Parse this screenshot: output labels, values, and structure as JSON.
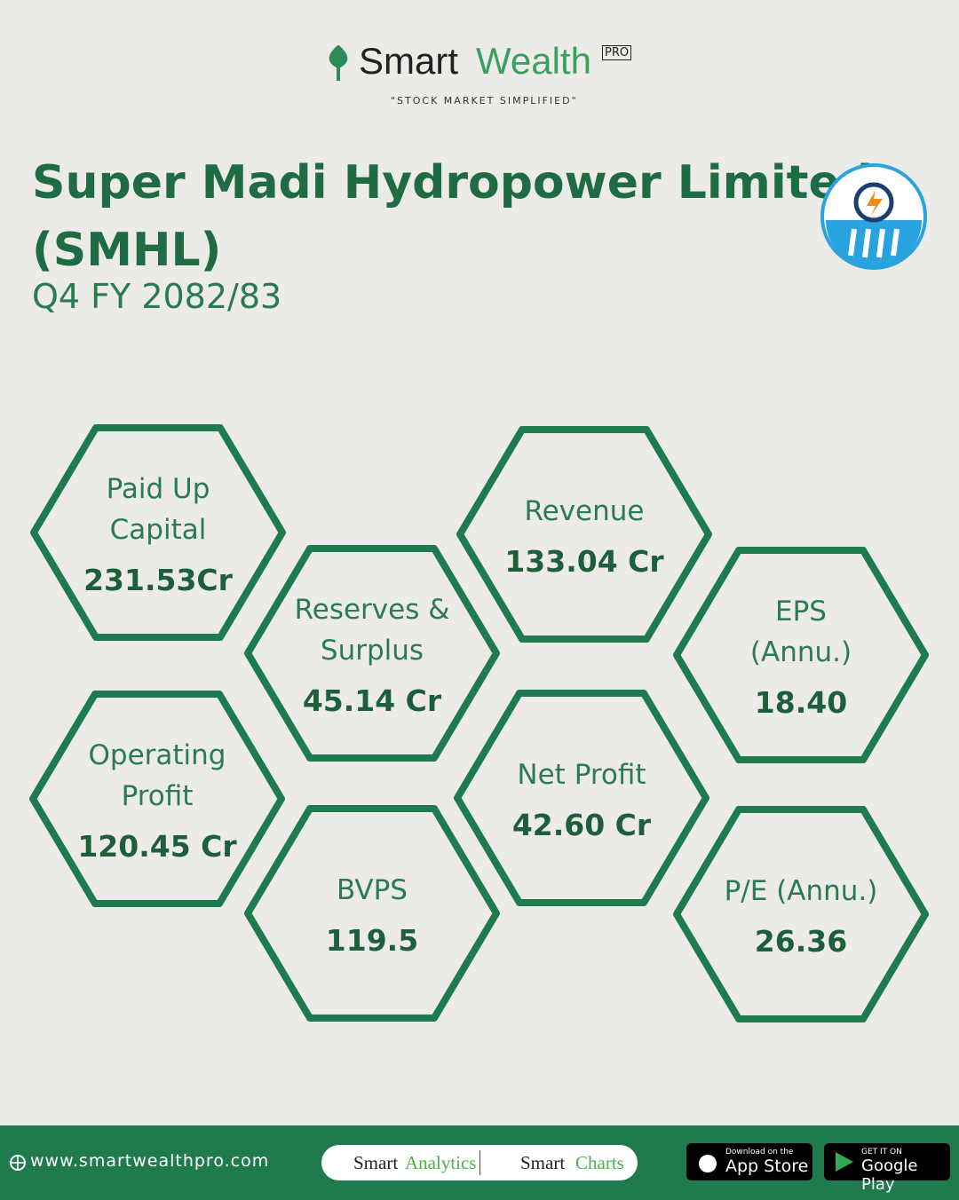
{
  "header": {
    "brand": "Smart",
    "brand_accent": "Wealth",
    "badge": "PRO",
    "tagline": "\"STOCK MARKET SIMPLIFIED\""
  },
  "title_lines": [
    "Super Madi Hydropower Limited",
    "(SMHL)"
  ],
  "subtitle": "Q4 FY 2082/83",
  "metrics": [
    {
      "label_lines": [
        "Paid Up",
        "Capital"
      ],
      "value": "231.53Cr"
    },
    {
      "label_lines": [
        "Reserves &",
        "Surplus"
      ],
      "value": "45.14 Cr"
    },
    {
      "label_lines": [
        "Revenue"
      ],
      "value": "133.04 Cr"
    },
    {
      "label_lines": [
        "EPS",
        "(Annu.)"
      ],
      "value": "18.40"
    },
    {
      "label_lines": [
        "Operating",
        "Profit"
      ],
      "value": "120.45 Cr"
    },
    {
      "label_lines": [
        "BVPS"
      ],
      "value": "119.5"
    },
    {
      "label_lines": [
        "Net Profit"
      ],
      "value": "42.60 Cr"
    },
    {
      "label_lines": [
        "P/E (Annu.)"
      ],
      "value": "26.36"
    }
  ],
  "footer": {
    "website": "www.smartwealthpro.com",
    "analytics_a": "Smart",
    "analytics_b": "Analytics",
    "charts_a": "Smart",
    "charts_b": "Charts",
    "appstore_small": "Download on the",
    "appstore": "App Store",
    "play_small": "GET IT ON",
    "play": "Google Play"
  }
}
